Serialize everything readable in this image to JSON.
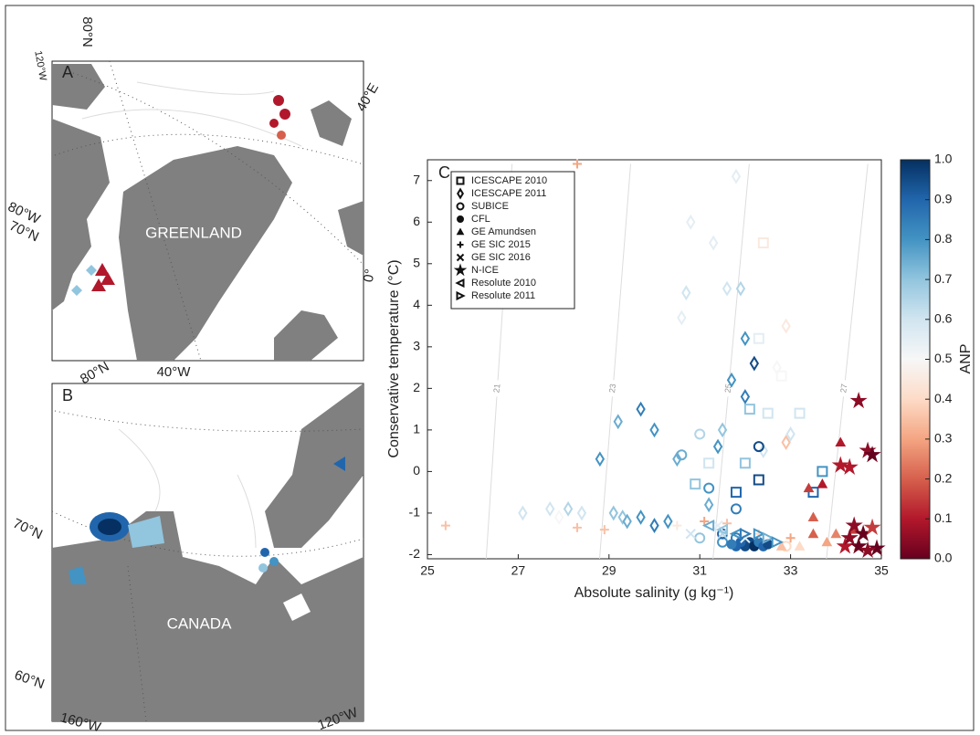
{
  "maps": [
    {
      "panel": "A",
      "labels": [
        "80°N",
        "120°W",
        "40°E",
        "GREENLAND",
        "80°W",
        "70°N",
        "0°",
        "40°W"
      ]
    },
    {
      "panel": "B",
      "labels": [
        "80°N",
        "70°N",
        "CANADA",
        "60°N",
        "160°W",
        "120°W"
      ]
    }
  ],
  "chart_data": {
    "type": "scatter",
    "panel": "C",
    "xlabel": "Absolute salinity (g kg⁻¹)",
    "ylabel": "Conservative temperature (°C)",
    "xlim": [
      25,
      35
    ],
    "xticks": [
      25,
      27,
      29,
      31,
      33,
      35
    ],
    "ylim": [
      -2.1,
      7.5
    ],
    "yticks": [
      -2,
      -1,
      0,
      1,
      2,
      3,
      4,
      5,
      6,
      7
    ],
    "isopycnals": [
      21,
      23,
      25,
      27
    ],
    "series": [
      {
        "name": "ICESCAPE 2010",
        "marker": "square",
        "filled": false,
        "x": [
          32.5,
          33.2,
          32.1,
          31.8,
          33.7,
          33.5,
          32.3,
          30.9,
          32.0,
          31.2,
          32.8,
          32.3,
          32.4
        ],
        "y": [
          1.4,
          1.4,
          1.5,
          -0.5,
          0,
          -0.5,
          -0.2,
          -0.3,
          0.2,
          0.2,
          2.3,
          3.2,
          5.5
        ],
        "anp": [
          0.6,
          0.6,
          0.7,
          0.9,
          0.8,
          0.9,
          0.95,
          0.7,
          0.7,
          0.6,
          0.5,
          0.55,
          0.45
        ]
      },
      {
        "name": "ICESCAPE 2011",
        "marker": "diamond",
        "filled": false,
        "x": [
          27.1,
          27.7,
          27.9,
          28.1,
          28.4,
          29.1,
          29.3,
          29.4,
          29.7,
          30.0,
          28.8,
          29.2,
          29.7,
          30.0,
          30.5,
          30.6,
          30.7,
          30.8,
          31.3,
          31.6,
          31.9,
          31.7,
          32.0,
          32.2,
          32.0,
          31.5,
          32.4,
          32.9,
          33.0,
          31.2,
          30.3,
          31.4,
          32.7,
          32.9,
          31.8
        ],
        "y": [
          -1,
          -0.9,
          -1.1,
          -0.9,
          -1.0,
          -1.0,
          -1.1,
          -1.2,
          -1.1,
          -1.3,
          0.3,
          1.2,
          1.5,
          1.0,
          0.3,
          3.7,
          4.3,
          6.0,
          5.5,
          4.4,
          4.4,
          2.2,
          3.2,
          2.6,
          1.8,
          1.0,
          0.5,
          0.7,
          0.9,
          -0.8,
          -1.2,
          0.6,
          2.5,
          3.5,
          7.1
        ],
        "anp": [
          0.6,
          0.6,
          0.5,
          0.65,
          0.6,
          0.7,
          0.7,
          0.75,
          0.8,
          0.85,
          0.8,
          0.75,
          0.85,
          0.8,
          0.75,
          0.55,
          0.6,
          0.55,
          0.55,
          0.6,
          0.65,
          0.8,
          0.8,
          0.95,
          0.85,
          0.7,
          0.6,
          0.35,
          0.6,
          0.75,
          0.8,
          0.8,
          0.5,
          0.45,
          0.55
        ]
      },
      {
        "name": "SUBICE",
        "marker": "circle",
        "filled": false,
        "x": [
          31.8,
          31.5,
          31.0,
          32.5,
          32.9,
          30.6,
          31.0,
          32.3,
          31.8,
          31.2,
          31.5
        ],
        "y": [
          -1.6,
          -1.7,
          -1.6,
          -1.7,
          -1.8,
          0.4,
          0.9,
          0.6,
          -0.9,
          -0.4,
          -1.5
        ],
        "anp": [
          0.85,
          0.8,
          0.7,
          0.5,
          0.4,
          0.75,
          0.65,
          0.95,
          0.85,
          0.8,
          0.9
        ]
      },
      {
        "name": "CFL",
        "marker": "circle",
        "filled": true,
        "x": [
          31.8,
          32.0,
          32.1,
          32.2,
          31.9,
          32.3,
          32.4,
          32.5,
          31.7
        ],
        "y": [
          -1.8,
          -1.8,
          -1.7,
          -1.8,
          -1.7,
          -1.7,
          -1.8,
          -1.75,
          -1.75
        ],
        "anp": [
          0.9,
          0.95,
          0.95,
          1.0,
          0.9,
          0.85,
          0.9,
          0.95,
          0.85
        ]
      },
      {
        "name": "GE Amundsen",
        "marker": "triangle",
        "filled": true,
        "x": [
          33.5,
          33.8,
          34.0,
          34.4,
          33.5,
          34.1,
          33.4,
          33.7,
          34.5,
          32.8,
          33.2
        ],
        "y": [
          -1.5,
          -1.7,
          -1.5,
          -1.4,
          -1.1,
          0.7,
          -0.4,
          -0.3,
          -1.8,
          -1.8,
          -1.8
        ],
        "anp": [
          0.2,
          0.3,
          0.25,
          0.15,
          0.2,
          0.1,
          0.15,
          0.1,
          0.3,
          0.35,
          0.4
        ]
      },
      {
        "name": "GE SIC 2015",
        "marker": "plus",
        "filled": false,
        "x": [
          25.4,
          28.3,
          28.9,
          30.5,
          31.1,
          31.6,
          33.0,
          32.3,
          28.3
        ],
        "y": [
          -1.3,
          -1.35,
          -1.4,
          -1.3,
          -1.2,
          -1.25,
          -1.6,
          -1.5,
          7.4
        ],
        "anp": [
          0.35,
          0.35,
          0.35,
          0.45,
          0.3,
          0.35,
          0.3,
          0.4,
          0.3
        ]
      },
      {
        "name": "GE SIC 2016",
        "marker": "cross",
        "filled": false,
        "x": [
          30.8,
          31.5,
          32.0,
          31.4
        ],
        "y": [
          -1.5,
          -1.5,
          -1.6,
          -1.3
        ],
        "anp": [
          0.6,
          0.65,
          0.55,
          0.55
        ]
      },
      {
        "name": "N-ICE",
        "marker": "star",
        "filled": true,
        "x": [
          34.5,
          34.7,
          34.8,
          34.3,
          34.4,
          34.6,
          34.9,
          34.2,
          34.5,
          34.7,
          34.8,
          34.3,
          34.1
        ],
        "y": [
          1.7,
          0.5,
          0.4,
          0.1,
          -1.3,
          -1.5,
          -1.85,
          -1.8,
          -1.8,
          -1.9,
          -1.35,
          -1.6,
          0.15
        ],
        "anp": [
          0.05,
          0.05,
          0,
          0.1,
          0.05,
          0,
          0,
          0.1,
          0,
          0.05,
          0.15,
          0.05,
          0.1
        ]
      },
      {
        "name": "Resolute 2010",
        "marker": "left",
        "filled": false,
        "x": [
          31.2,
          31.5,
          31.8
        ],
        "y": [
          -1.3,
          -1.4,
          -1.5
        ],
        "anp": [
          0.75,
          0.7,
          0.8
        ]
      },
      {
        "name": "Resolute 2011",
        "marker": "right",
        "filled": false,
        "x": [
          32.0,
          32.3,
          32.5,
          32.7
        ],
        "y": [
          -1.5,
          -1.5,
          -1.6,
          -1.7
        ],
        "anp": [
          0.85,
          0.8,
          0.75,
          0.8
        ]
      }
    ],
    "colorbar": {
      "label": "ANP",
      "lim": [
        0,
        1
      ],
      "ticks": [
        {
          "value": 0,
          "label": "0.0"
        },
        {
          "value": 0.1,
          "label": "0.1"
        },
        {
          "value": 0.2,
          "label": "0.2"
        },
        {
          "value": 0.3,
          "label": "0.3"
        },
        {
          "value": 0.4,
          "label": "0.4"
        },
        {
          "value": 0.5,
          "label": "0.5"
        },
        {
          "value": 0.6,
          "label": "0.6"
        },
        {
          "value": 0.7,
          "label": "0.7"
        },
        {
          "value": 0.8,
          "label": "0.8"
        },
        {
          "value": 0.9,
          "label": "0.9"
        },
        {
          "value": 1,
          "label": "1.0"
        }
      ],
      "colors": [
        "#67001f",
        "#b2182b",
        "#d6604d",
        "#f4a582",
        "#fddbc7",
        "#f7f7f7",
        "#d1e5f0",
        "#92c5de",
        "#4393c3",
        "#2166ac",
        "#053061"
      ]
    }
  }
}
